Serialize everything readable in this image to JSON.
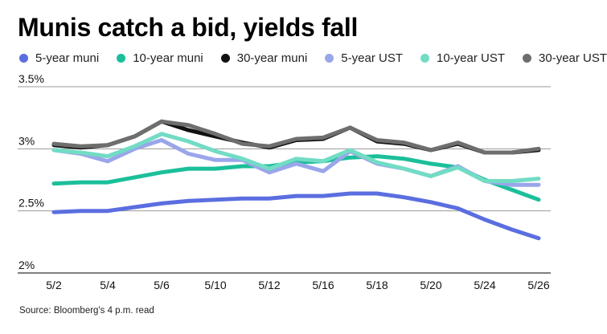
{
  "title": "Munis catch a bid, yields fall",
  "source": "Source: Bloomberg's 4 p.m. read",
  "chart_data": {
    "type": "line",
    "title": "Munis catch a bid, yields fall",
    "xlabel": "",
    "ylabel": "",
    "ylim": [
      2.0,
      3.5
    ],
    "yticks": [
      {
        "value": 3.5,
        "label": "3.5%"
      },
      {
        "value": 3.0,
        "label": "3%"
      },
      {
        "value": 2.5,
        "label": "2.5%"
      },
      {
        "value": 2.0,
        "label": "2%"
      }
    ],
    "x": [
      "5/2",
      "5/3",
      "5/4",
      "5/5",
      "5/6",
      "5/9",
      "5/10",
      "5/11",
      "5/12",
      "5/13",
      "5/16",
      "5/17",
      "5/18",
      "5/19",
      "5/20",
      "5/23",
      "5/24",
      "5/25",
      "5/26"
    ],
    "xticks": [
      "5/2",
      "5/4",
      "5/6",
      "5/10",
      "5/12",
      "5/16",
      "5/18",
      "5/20",
      "5/24",
      "5/26"
    ],
    "legend_position": "top",
    "series": [
      {
        "name": "5-year muni",
        "color": "#5b6ee0",
        "values": [
          2.49,
          2.5,
          2.5,
          2.53,
          2.56,
          2.58,
          2.59,
          2.6,
          2.6,
          2.62,
          2.62,
          2.64,
          2.64,
          2.61,
          2.57,
          2.52,
          2.43,
          2.35,
          2.28
        ]
      },
      {
        "name": "10-year muni",
        "color": "#1bbf9a",
        "values": [
          2.72,
          2.73,
          2.73,
          2.77,
          2.81,
          2.84,
          2.84,
          2.86,
          2.86,
          2.89,
          2.9,
          2.93,
          2.94,
          2.92,
          2.88,
          2.85,
          2.75,
          2.67,
          2.59
        ]
      },
      {
        "name": "30-year muni",
        "color": "#111111",
        "values": [
          3.03,
          3.01,
          3.03,
          3.1,
          3.22,
          3.15,
          3.1,
          3.05,
          3.01,
          3.07,
          3.08,
          3.17,
          3.06,
          3.04,
          2.99,
          3.04,
          2.97,
          2.97,
          2.99
        ]
      },
      {
        "name": "5-year UST",
        "color": "#9aa6ea",
        "values": [
          2.99,
          2.96,
          2.9,
          3.0,
          3.07,
          2.96,
          2.91,
          2.91,
          2.81,
          2.88,
          2.82,
          2.98,
          2.88,
          2.84,
          2.78,
          2.86,
          2.74,
          2.71,
          2.71
        ]
      },
      {
        "name": "10-year UST",
        "color": "#72dcc4",
        "values": [
          2.99,
          2.97,
          2.94,
          3.02,
          3.12,
          3.06,
          2.98,
          2.92,
          2.84,
          2.92,
          2.9,
          2.99,
          2.89,
          2.84,
          2.78,
          2.85,
          2.74,
          2.74,
          2.76
        ]
      },
      {
        "name": "30-year UST",
        "color": "#6e6e6e",
        "values": [
          3.04,
          3.02,
          3.03,
          3.1,
          3.22,
          3.19,
          3.12,
          3.04,
          3.02,
          3.08,
          3.09,
          3.17,
          3.07,
          3.05,
          2.99,
          3.05,
          2.97,
          2.97,
          3.0
        ]
      }
    ]
  }
}
